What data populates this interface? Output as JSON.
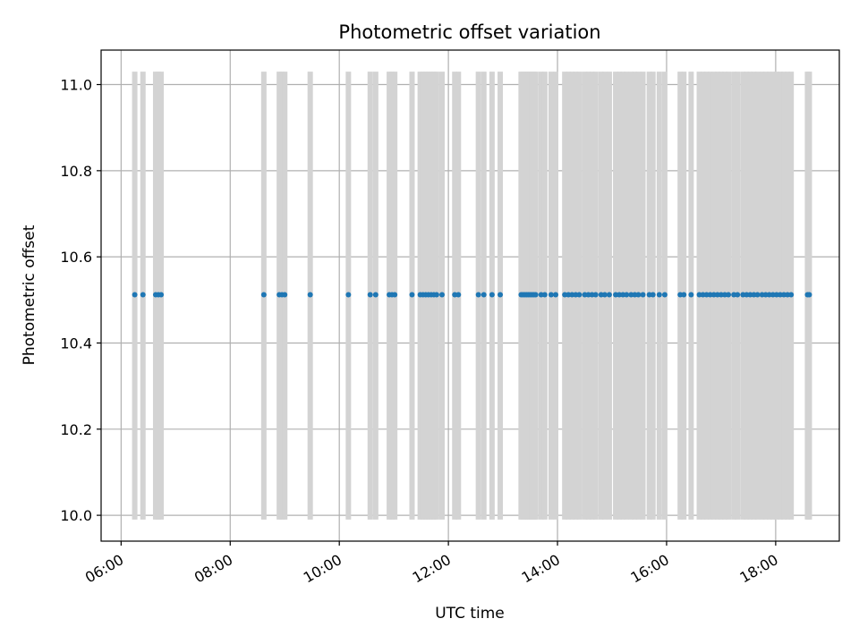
{
  "chart_data": {
    "type": "scatter",
    "title": "Photometric offset variation",
    "xlabel": "UTC time",
    "ylabel": "Photometric offset",
    "x_tick_labels": [
      "06:00",
      "08:00",
      "10:00",
      "12:00",
      "14:00",
      "16:00",
      "18:00"
    ],
    "y_tick_labels": [
      "10.0",
      "10.2",
      "10.4",
      "10.6",
      "10.8",
      "11.0"
    ],
    "xlim": [
      "05:38",
      "19:10"
    ],
    "ylim": [
      9.94,
      11.08
    ],
    "grid": true,
    "colors": {
      "points": "#1f77b4",
      "bands": "#d3d3d3",
      "grid": "#b0b0b0"
    },
    "band_y_range": [
      9.99,
      11.03
    ],
    "constant_y": 10.512,
    "x": [
      "06:15",
      "06:24",
      "06:38",
      "06:41",
      "06:44",
      "08:37",
      "08:54",
      "08:57",
      "09:00",
      "09:28",
      "10:10",
      "10:34",
      "10:40",
      "10:55",
      "10:58",
      "11:01",
      "11:20",
      "11:29",
      "11:32",
      "11:35",
      "11:38",
      "11:41",
      "11:44",
      "11:47",
      "11:53",
      "12:07",
      "12:11",
      "12:33",
      "12:39",
      "12:48",
      "12:57",
      "13:20",
      "13:22",
      "13:24",
      "13:26",
      "13:28",
      "13:30",
      "13:32",
      "13:34",
      "13:36",
      "13:42",
      "13:46",
      "13:53",
      "13:58",
      "14:08",
      "14:12",
      "14:16",
      "14:20",
      "14:24",
      "14:30",
      "14:34",
      "14:38",
      "14:42",
      "14:48",
      "14:52",
      "14:57",
      "15:04",
      "15:08",
      "15:12",
      "15:16",
      "15:21",
      "15:25",
      "15:29",
      "15:34",
      "15:41",
      "15:45",
      "15:52",
      "15:58",
      "16:15",
      "16:19",
      "16:27",
      "16:36",
      "16:40",
      "16:44",
      "16:48",
      "16:52",
      "16:56",
      "17:00",
      "17:04",
      "17:08",
      "17:14",
      "17:18",
      "17:24",
      "17:28",
      "17:32",
      "17:36",
      "17:40",
      "17:45",
      "17:49",
      "17:53",
      "17:57",
      "18:01",
      "18:05",
      "18:09",
      "18:13",
      "18:17",
      "18:35",
      "18:37"
    ]
  }
}
